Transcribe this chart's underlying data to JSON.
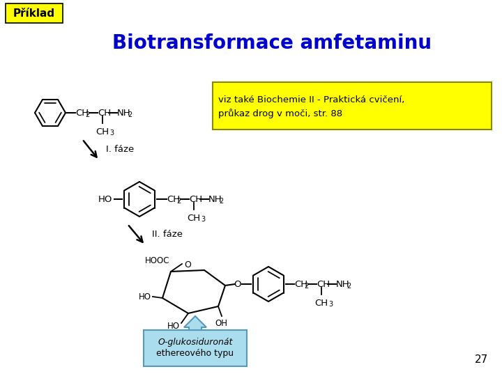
{
  "slide_bg": "#ffffff",
  "title": "Biotransformace amfetaminu",
  "title_color": "#0000cc",
  "title_fontsize": 20,
  "header_label": "Příklad",
  "header_bg": "#ffff00",
  "note_line1": "viz také Biochemie II - Praktická cvičení,",
  "note_line2": "průkaz drog v moči, str. 88",
  "note_bg": "#ffff00",
  "phase1_label": "I. fáze",
  "phase2_label": "II. fáze",
  "bottom_label_line1": "O-glukosiduronát",
  "bottom_label_line2": "ethereového typu",
  "bottom_box_bg": "#aaddee",
  "bottom_box_edge": "#5599bb",
  "arrow_color": "#66aacc",
  "page_number": "27"
}
